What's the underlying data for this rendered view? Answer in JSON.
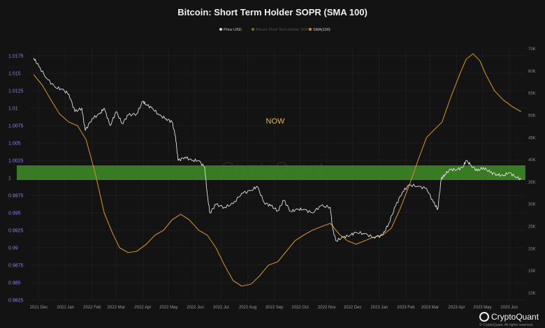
{
  "chart_data": {
    "type": "line",
    "title": "Bitcoin: Short Term Holder SOPR (SMA 100)",
    "legend": [
      {
        "name": "Price USD",
        "color": "#e0e0e0"
      },
      {
        "name": "Bitcoin Short Term Holder SOPR",
        "color": "#5a7a3a"
      },
      {
        "name": "SMA(100)",
        "color": "#c98c2a"
      }
    ],
    "legend_placement": "top-center",
    "x_ticks": [
      "2021 Dec",
      "2022 Jan",
      "2022 Feb",
      "2022 Mar",
      "2022 Apr",
      "2022 May",
      "2022 Jun",
      "2022 Jul",
      "2022 Aug",
      "2022 Sep",
      "2022 Oct",
      "2022 Nov",
      "2022 Dec",
      "2023 Jan",
      "2023 Feb",
      "2023 Mar",
      "2023 Apr",
      "2023 May",
      "2023 Jun"
    ],
    "y_left_ticks": [
      "1.0175",
      "1.015",
      "1.0125",
      "1.01",
      "1.0075",
      "1.005",
      "1.0025",
      "1",
      "0.9975",
      "0.995",
      "0.9925",
      "0.99",
      "0.9875",
      "0.985",
      "0.9825"
    ],
    "y_left_range": [
      0.9825,
      1.0175
    ],
    "y_right_ticks": [
      "70K",
      "60K",
      "55K",
      "50K",
      "45K",
      "40K",
      "35K",
      "30K",
      "25K",
      "20K",
      "15K",
      "10K"
    ],
    "band": {
      "y_from": 0.9997,
      "y_to": 1.0018,
      "color": "#3f8a28"
    },
    "annotation": "NOW",
    "watermark": "CryptoQuant",
    "series": [
      {
        "name": "SMA(100)",
        "axis": "left",
        "color": "#c98c2a",
        "points": [
          [
            "2021-11-25",
            1.0148
          ],
          [
            "2021-12-05",
            1.0133
          ],
          [
            "2021-12-15",
            1.0112
          ],
          [
            "2021-12-25",
            1.0092
          ],
          [
            "2022-01-05",
            1.008
          ],
          [
            "2022-01-15",
            1.0075
          ],
          [
            "2022-01-25",
            1.0055
          ],
          [
            "2022-02-05",
            1.0005
          ],
          [
            "2022-02-15",
            0.995
          ],
          [
            "2022-02-25",
            0.992
          ],
          [
            "2022-03-05",
            0.99
          ],
          [
            "2022-03-15",
            0.9893
          ],
          [
            "2022-03-25",
            0.9895
          ],
          [
            "2022-04-05",
            0.9905
          ],
          [
            "2022-04-15",
            0.9918
          ],
          [
            "2022-04-25",
            0.9925
          ],
          [
            "2022-05-05",
            0.994
          ],
          [
            "2022-05-15",
            0.9948
          ],
          [
            "2022-05-25",
            0.994
          ],
          [
            "2022-06-05",
            0.9925
          ],
          [
            "2022-06-15",
            0.9918
          ],
          [
            "2022-06-25",
            0.99
          ],
          [
            "2022-07-05",
            0.9875
          ],
          [
            "2022-07-15",
            0.9853
          ],
          [
            "2022-07-25",
            0.9845
          ],
          [
            "2022-08-05",
            0.9848
          ],
          [
            "2022-08-15",
            0.986
          ],
          [
            "2022-08-25",
            0.9875
          ],
          [
            "2022-09-05",
            0.988
          ],
          [
            "2022-09-15",
            0.9895
          ],
          [
            "2022-09-25",
            0.991
          ],
          [
            "2022-10-05",
            0.9918
          ],
          [
            "2022-10-15",
            0.9925
          ],
          [
            "2022-10-25",
            0.993
          ],
          [
            "2022-11-05",
            0.9935
          ],
          [
            "2022-11-15",
            0.992
          ],
          [
            "2022-11-25",
            0.991
          ],
          [
            "2022-12-05",
            0.9905
          ],
          [
            "2022-12-15",
            0.991
          ],
          [
            "2022-12-25",
            0.9915
          ],
          [
            "2023-01-05",
            0.9918
          ],
          [
            "2023-01-15",
            0.9928
          ],
          [
            "2023-01-25",
            0.9955
          ],
          [
            "2023-02-05",
            0.999
          ],
          [
            "2023-02-15",
            1.0025
          ],
          [
            "2023-02-25",
            1.0058
          ],
          [
            "2023-03-05",
            1.0068
          ],
          [
            "2023-03-15",
            1.008
          ],
          [
            "2023-03-25",
            1.0115
          ],
          [
            "2023-04-05",
            1.015
          ],
          [
            "2023-04-12",
            1.017
          ],
          [
            "2023-04-20",
            1.0178
          ],
          [
            "2023-04-28",
            1.0168
          ],
          [
            "2023-05-05",
            1.0148
          ],
          [
            "2023-05-15",
            1.0125
          ],
          [
            "2023-05-25",
            1.0112
          ],
          [
            "2023-06-05",
            1.0102
          ],
          [
            "2023-06-15",
            1.0095
          ]
        ]
      },
      {
        "name": "Price USD",
        "axis": "left",
        "color": "#e0e0e0",
        "points": [
          [
            "2021-11-25",
            1.0172
          ],
          [
            "2021-12-01",
            1.016
          ],
          [
            "2021-12-10",
            1.0143
          ],
          [
            "2021-12-20",
            1.013
          ],
          [
            "2021-12-28",
            1.0127
          ],
          [
            "2022-01-05",
            1.012
          ],
          [
            "2022-01-12",
            1.0095
          ],
          [
            "2022-01-20",
            1.01
          ],
          [
            "2022-01-24",
            1.0068
          ],
          [
            "2022-02-01",
            1.0085
          ],
          [
            "2022-02-10",
            1.0092
          ],
          [
            "2022-02-15",
            1.01
          ],
          [
            "2022-02-22",
            1.0075
          ],
          [
            "2022-03-01",
            1.0095
          ],
          [
            "2022-03-08",
            1.0078
          ],
          [
            "2022-03-15",
            1.009
          ],
          [
            "2022-03-25",
            1.0092
          ],
          [
            "2022-04-01",
            1.011
          ],
          [
            "2022-04-05",
            1.0105
          ],
          [
            "2022-04-12",
            1.01
          ],
          [
            "2022-04-20",
            1.009
          ],
          [
            "2022-04-28",
            1.0085
          ],
          [
            "2022-05-05",
            1.008
          ],
          [
            "2022-05-09",
            1.006
          ],
          [
            "2022-05-12",
            1.0025
          ],
          [
            "2022-05-20",
            1.003
          ],
          [
            "2022-05-28",
            1.0025
          ],
          [
            "2022-06-05",
            1.0025
          ],
          [
            "2022-06-12",
            1.0015
          ],
          [
            "2022-06-15",
            0.9975
          ],
          [
            "2022-06-18",
            0.995
          ],
          [
            "2022-06-25",
            0.9962
          ],
          [
            "2022-07-05",
            0.9958
          ],
          [
            "2022-07-15",
            0.9963
          ],
          [
            "2022-07-25",
            0.9978
          ],
          [
            "2022-08-05",
            0.9982
          ],
          [
            "2022-08-12",
            0.9988
          ],
          [
            "2022-08-20",
            0.9965
          ],
          [
            "2022-08-28",
            0.996
          ],
          [
            "2022-09-05",
            0.9953
          ],
          [
            "2022-09-12",
            0.9968
          ],
          [
            "2022-09-20",
            0.9952
          ],
          [
            "2022-09-28",
            0.9955
          ],
          [
            "2022-10-05",
            0.9955
          ],
          [
            "2022-10-15",
            0.995
          ],
          [
            "2022-10-25",
            0.996
          ],
          [
            "2022-11-05",
            0.9958
          ],
          [
            "2022-11-08",
            0.9925
          ],
          [
            "2022-11-12",
            0.991
          ],
          [
            "2022-11-20",
            0.9915
          ],
          [
            "2022-11-28",
            0.9918
          ],
          [
            "2022-12-05",
            0.9922
          ],
          [
            "2022-12-15",
            0.992
          ],
          [
            "2022-12-25",
            0.9915
          ],
          [
            "2023-01-05",
            0.9918
          ],
          [
            "2023-01-12",
            0.9935
          ],
          [
            "2023-01-20",
            0.996
          ],
          [
            "2023-01-28",
            0.998
          ],
          [
            "2023-02-05",
            0.999
          ],
          [
            "2023-02-15",
            0.9988
          ],
          [
            "2023-02-25",
            0.9985
          ],
          [
            "2023-03-05",
            0.9965
          ],
          [
            "2023-03-10",
            0.9955
          ],
          [
            "2023-03-14",
            0.9998
          ],
          [
            "2023-03-18",
            1.0005
          ],
          [
            "2023-03-25",
            1.0012
          ],
          [
            "2023-04-01",
            1.0012
          ],
          [
            "2023-04-08",
            1.0015
          ],
          [
            "2023-04-12",
            1.0025
          ],
          [
            "2023-04-18",
            1.0018
          ],
          [
            "2023-04-25",
            1.001
          ],
          [
            "2023-05-02",
            1.0015
          ],
          [
            "2023-05-10",
            1.0008
          ],
          [
            "2023-05-18",
            1.0005
          ],
          [
            "2023-05-25",
            1.0003
          ],
          [
            "2023-06-01",
            1.0008
          ],
          [
            "2023-06-08",
            1.0002
          ],
          [
            "2023-06-15",
            0.9998
          ]
        ]
      }
    ]
  },
  "brand": {
    "name": "CryptoQuant",
    "copyright": "© CryptoQuant. All rights reserved."
  }
}
